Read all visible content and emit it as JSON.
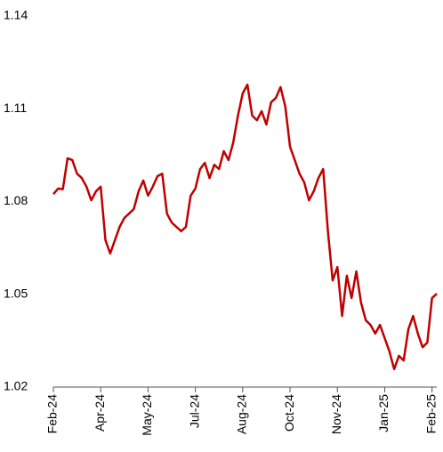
{
  "chart_data": {
    "type": "line",
    "series": [
      {
        "color": "#c00000",
        "values": [
          1.0824,
          1.0842,
          1.084,
          1.094,
          1.0934,
          1.089,
          1.0876,
          1.0848,
          1.0804,
          1.0833,
          1.0848,
          1.0675,
          1.0632,
          1.0675,
          1.0718,
          1.0747,
          1.0761,
          1.0776,
          1.0833,
          1.0868,
          1.0819,
          1.0848,
          1.0882,
          1.089,
          1.0761,
          1.0732,
          1.0718,
          1.0704,
          1.0718,
          1.0819,
          1.0842,
          1.0905,
          1.0925,
          1.0876,
          1.0919,
          1.0905,
          1.0963,
          1.0934,
          1.0991,
          1.1078,
          1.115,
          1.1178,
          1.1078,
          1.1063,
          1.1092,
          1.1049,
          1.1121,
          1.1135,
          1.117,
          1.1107,
          1.0977,
          1.0934,
          1.089,
          1.0862,
          1.0804,
          1.0833,
          1.0876,
          1.0905,
          1.0704,
          1.0545,
          1.0588,
          1.043,
          1.056,
          1.0488,
          1.0574,
          1.0473,
          1.0416,
          1.0401,
          1.0373,
          1.0401,
          1.0358,
          1.0315,
          1.0258,
          1.0301,
          1.0286,
          1.0387,
          1.043,
          1.0373,
          1.0329,
          1.0344,
          1.0488,
          1.0502
        ]
      }
    ],
    "xlim": [
      0,
      81
    ],
    "xticks": [
      {
        "value": 0,
        "label": "Feb-24"
      },
      {
        "value": 10,
        "label": "Apr-24"
      },
      {
        "value": 20,
        "label": "May-24"
      },
      {
        "value": 30,
        "label": "Jul-24"
      },
      {
        "value": 40,
        "label": "Aug-24"
      },
      {
        "value": 50,
        "label": "Oct-24"
      },
      {
        "value": 60,
        "label": "Nov-24"
      },
      {
        "value": 70,
        "label": "Jan-25"
      },
      {
        "value": 80,
        "label": "Feb-25"
      }
    ],
    "ylim": [
      1.02,
      1.14
    ],
    "yticks": [
      1.02,
      1.05,
      1.08,
      1.11,
      1.14
    ]
  }
}
